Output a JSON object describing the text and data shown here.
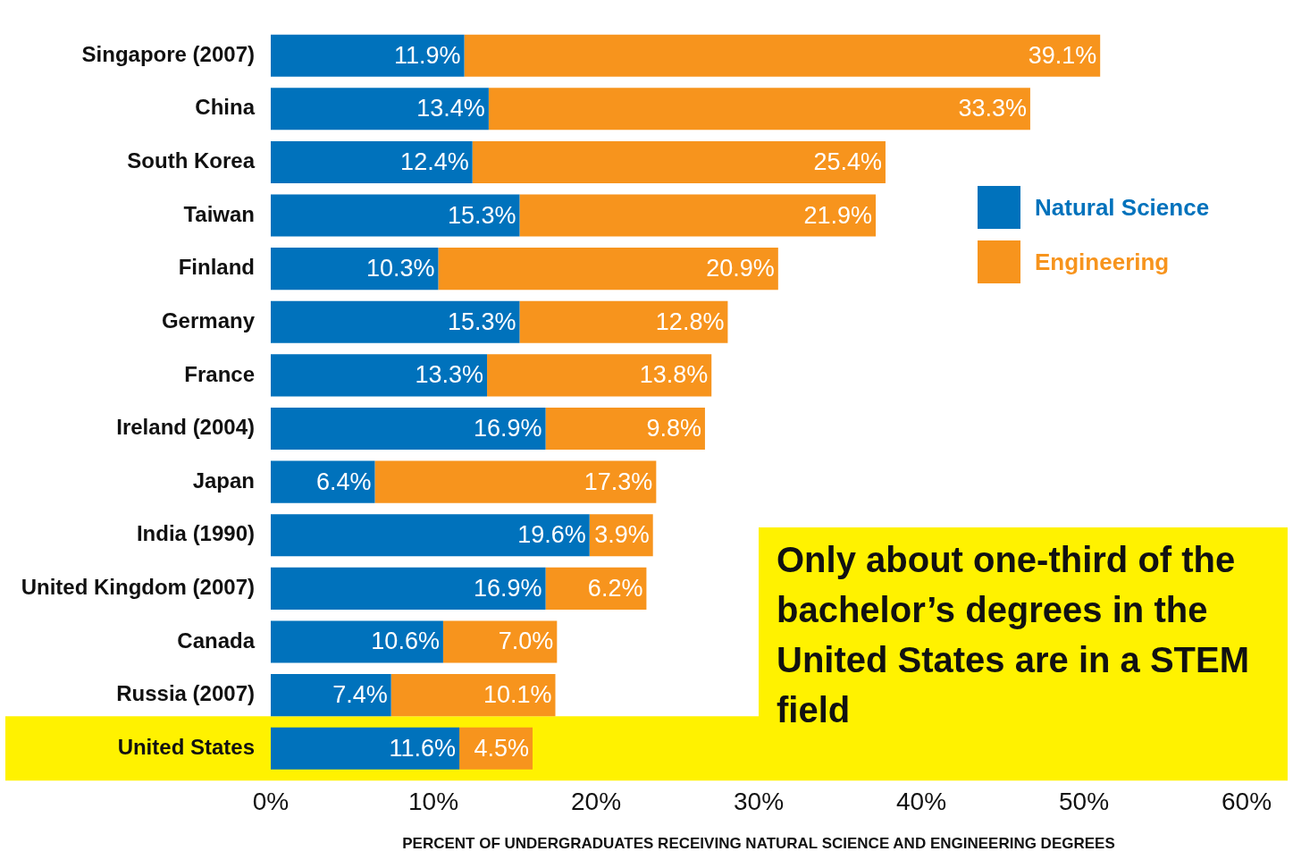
{
  "chart_data": {
    "type": "bar",
    "orientation": "horizontal",
    "stacked": true,
    "categories": [
      "Singapore (2007)",
      "China",
      "South Korea",
      "Taiwan",
      "Finland",
      "Germany",
      "France",
      "Ireland (2004)",
      "Japan",
      "India (1990)",
      "United Kingdom (2007)",
      "Canada",
      "Russia (2007)",
      "United States"
    ],
    "series": [
      {
        "name": "Natural Science",
        "color": "#0072bc",
        "values": [
          11.9,
          13.4,
          12.4,
          15.3,
          10.3,
          15.3,
          13.3,
          16.9,
          6.4,
          19.6,
          16.9,
          10.6,
          7.4,
          11.6
        ],
        "value_labels": [
          "11.9%",
          "13.4%",
          "12.4%",
          "15.3%",
          "10.3%",
          "15.3%",
          "13.3%",
          "16.9%",
          "6.4%",
          "19.6%",
          "16.9%",
          "10.6%",
          "7.4%",
          "11.6%"
        ]
      },
      {
        "name": "Engineering",
        "color": "#f7941d",
        "values": [
          39.1,
          33.3,
          25.4,
          21.9,
          20.9,
          12.8,
          13.8,
          9.8,
          17.3,
          3.9,
          6.2,
          7.0,
          10.1,
          4.5
        ],
        "value_labels": [
          "39.1%",
          "33.3%",
          "25.4%",
          "21.9%",
          "20.9%",
          "12.8%",
          "13.8%",
          "9.8%",
          "17.3%",
          "3.9%",
          "6.2%",
          "7.0%",
          "10.1%",
          "4.5%"
        ]
      }
    ],
    "xlim": [
      0,
      60
    ],
    "xticks": [
      {
        "value": 0,
        "label": "0%"
      },
      {
        "value": 10,
        "label": "10%"
      },
      {
        "value": 20,
        "label": "20%"
      },
      {
        "value": 30,
        "label": "30%"
      },
      {
        "value": 40,
        "label": "40%"
      },
      {
        "value": 50,
        "label": "50%"
      },
      {
        "value": 60,
        "label": "60%"
      }
    ],
    "xlabel": "PERCENT OF UNDERGRADUATES RECEIVING NATURAL SCIENCE AND ENGINEERING DEGREES",
    "bands": [
      {
        "axis": "y",
        "from": "United States",
        "to": "United States",
        "color": "#fff200"
      }
    ],
    "annotations": [
      "Only about one-third of the bachelor’s degrees in the United States are in a STEM field"
    ],
    "legend": "right",
    "grid": false
  }
}
